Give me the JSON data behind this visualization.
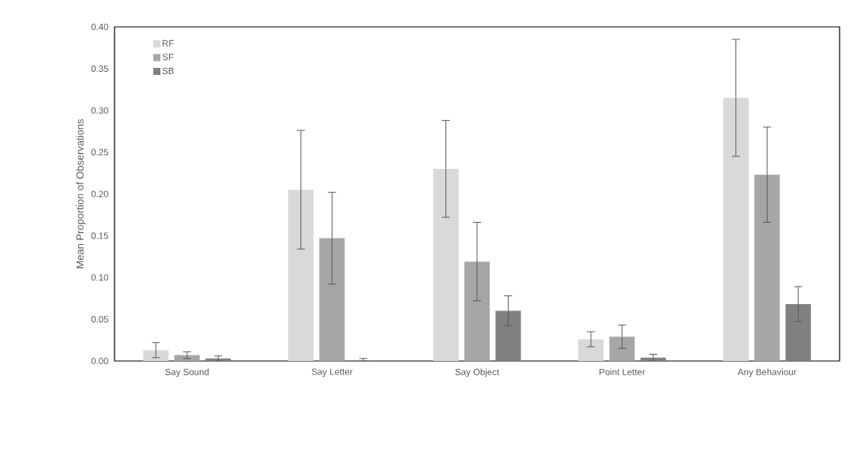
{
  "chart_data": {
    "type": "bar",
    "ylabel": "Mean Proportion of Observations",
    "categories": [
      "Say Sound",
      "Say Letter",
      "Say Object",
      "Point Letter",
      "Any Behaviour"
    ],
    "series": [
      {
        "name": "RF",
        "color": "#d9d9d9",
        "values": [
          0.013,
          0.205,
          0.23,
          0.026,
          0.315
        ],
        "errors": [
          0.009,
          0.071,
          0.058,
          0.009,
          0.07
        ]
      },
      {
        "name": "SF",
        "color": "#a6a6a6",
        "values": [
          0.007,
          0.147,
          0.119,
          0.029,
          0.223
        ],
        "errors": [
          0.004,
          0.055,
          0.047,
          0.014,
          0.057
        ]
      },
      {
        "name": "SB",
        "color": "#808080",
        "values": [
          0.003,
          0.001,
          0.06,
          0.004,
          0.068
        ],
        "errors": [
          0.003,
          [
            0.001,
            0.002
          ],
          0.018,
          0.004,
          0.021
        ]
      }
    ],
    "ylim": [
      0,
      0.4
    ],
    "yticks": [
      {
        "value": 0,
        "label": "0.00"
      },
      {
        "value": 0.05,
        "label": "0.05"
      },
      {
        "value": 0.1,
        "label": "0.10"
      },
      {
        "value": 0.15,
        "label": "0.15"
      },
      {
        "value": 0.2,
        "label": "0.20"
      },
      {
        "value": 0.25,
        "label": "0.25"
      },
      {
        "value": 0.3,
        "label": "0.30"
      },
      {
        "value": 0.35,
        "label": "0.35"
      },
      {
        "value": 0.4,
        "label": "0.40"
      }
    ],
    "legend": "top left",
    "grid": false
  }
}
